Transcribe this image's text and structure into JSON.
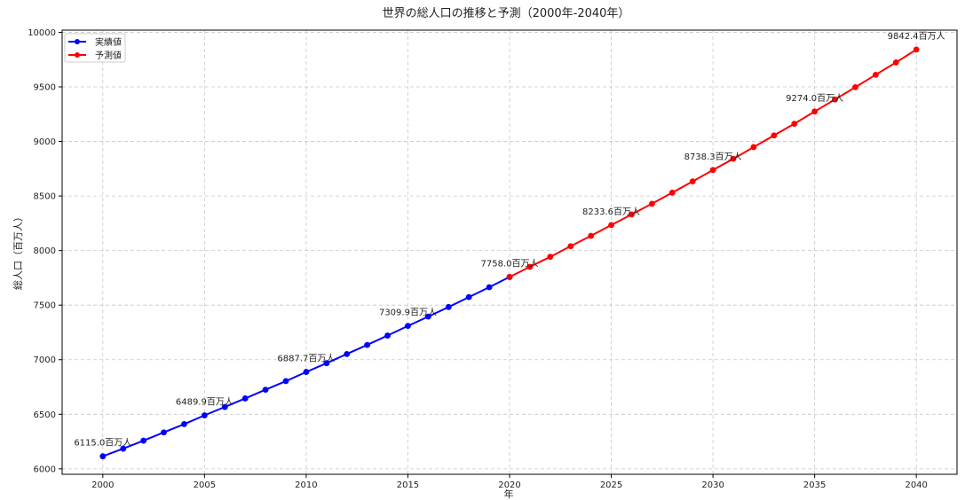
{
  "chart_data": {
    "type": "line",
    "title": "世界の総人口の推移と予測（2000年-2040年）",
    "xlabel": "年",
    "ylabel": "総人口（百万人）",
    "xlim": [
      1998,
      2042
    ],
    "ylim": [
      5950,
      10020
    ],
    "xticks": [
      2000,
      2005,
      2010,
      2015,
      2020,
      2025,
      2030,
      2035,
      2040
    ],
    "yticks": [
      6000,
      6500,
      7000,
      7500,
      8000,
      8500,
      9000,
      9500,
      10000
    ],
    "grid": true,
    "legend_position": "top-left",
    "series": [
      {
        "name": "実績値",
        "color": "#0000ff",
        "x": [
          2000,
          2001,
          2002,
          2003,
          2004,
          2005,
          2006,
          2007,
          2008,
          2009,
          2010,
          2011,
          2012,
          2013,
          2014,
          2015,
          2016,
          2017,
          2018,
          2019,
          2020
        ],
        "values": [
          6115.0,
          6185,
          6258,
          6334,
          6410,
          6489.9,
          6567,
          6645,
          6725,
          6804,
          6887.7,
          6968,
          7052,
          7135,
          7221,
          7309.9,
          7395,
          7483,
          7574,
          7664,
          7758.0
        ]
      },
      {
        "name": "予測値",
        "color": "#ff0000",
        "x": [
          2020,
          2021,
          2022,
          2023,
          2024,
          2025,
          2026,
          2027,
          2028,
          2029,
          2030,
          2031,
          2032,
          2033,
          2034,
          2035,
          2036,
          2037,
          2038,
          2039,
          2040
        ],
        "values": [
          7758.0,
          7851,
          7943,
          8040,
          8135,
          8233.6,
          8331,
          8429,
          8531,
          8634,
          8738.3,
          8841,
          8948,
          9055,
          9162,
          9274.0,
          9385,
          9497,
          9611,
          9724,
          9842.4
        ]
      }
    ],
    "annotations": [
      {
        "x": 2000,
        "y": 6115.0,
        "text": "6115.0百万人"
      },
      {
        "x": 2005,
        "y": 6489.9,
        "text": "6489.9百万人"
      },
      {
        "x": 2010,
        "y": 6887.7,
        "text": "6887.7百万人"
      },
      {
        "x": 2015,
        "y": 7309.9,
        "text": "7309.9百万人"
      },
      {
        "x": 2020,
        "y": 7758.0,
        "text": "7758.0百万人"
      },
      {
        "x": 2025,
        "y": 8233.6,
        "text": "8233.6百万人"
      },
      {
        "x": 2030,
        "y": 8738.3,
        "text": "8738.3百万人"
      },
      {
        "x": 2035,
        "y": 9274.0,
        "text": "9274.0百万人"
      },
      {
        "x": 2040,
        "y": 9842.4,
        "text": "9842.4百万人"
      }
    ]
  }
}
